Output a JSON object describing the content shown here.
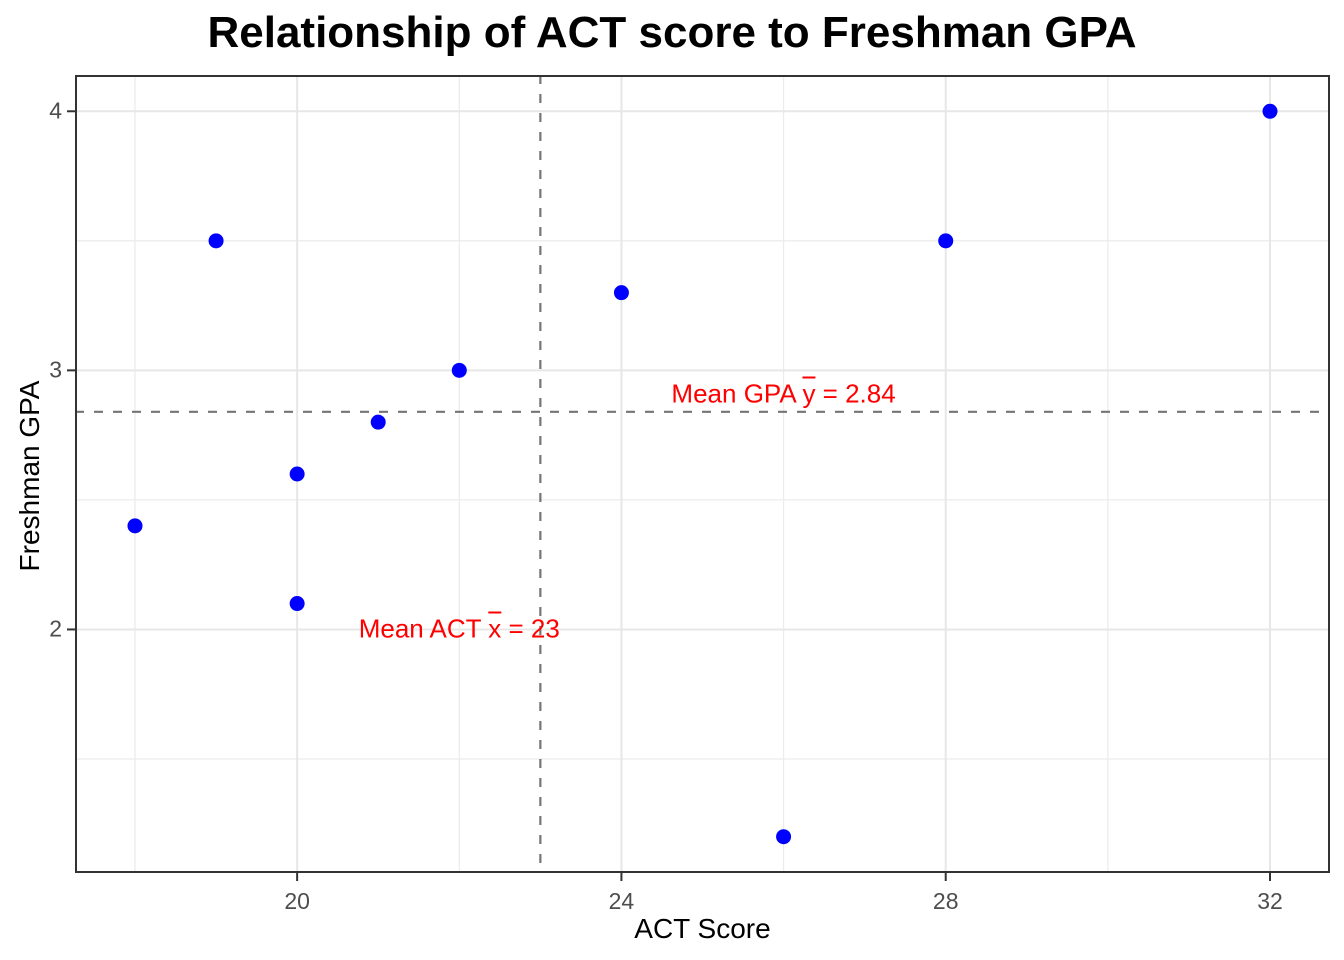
{
  "chart_data": {
    "type": "scatter",
    "title": "Relationship of ACT score to Freshman GPA",
    "xlabel": "ACT Score",
    "ylabel": "Freshman GPA",
    "points": [
      {
        "x": 18,
        "y": 2.4
      },
      {
        "x": 19,
        "y": 3.5
      },
      {
        "x": 20,
        "y": 2.6
      },
      {
        "x": 20,
        "y": 2.1
      },
      {
        "x": 21,
        "y": 2.8
      },
      {
        "x": 22,
        "y": 3.0
      },
      {
        "x": 24,
        "y": 3.3
      },
      {
        "x": 26,
        "y": 1.2
      },
      {
        "x": 28,
        "y": 3.5
      },
      {
        "x": 32,
        "y": 4.0
      }
    ],
    "xlim": [
      17.26,
      32.74
    ],
    "ylim": [
      1.06,
      4.14
    ],
    "x_ticks": [
      {
        "value": 20,
        "label": "20"
      },
      {
        "value": 24,
        "label": "24"
      },
      {
        "value": 28,
        "label": "28"
      },
      {
        "value": 32,
        "label": "32"
      }
    ],
    "y_ticks": [
      {
        "value": 2,
        "label": "2"
      },
      {
        "value": 3,
        "label": "3"
      },
      {
        "value": 4,
        "label": "4"
      }
    ],
    "x_minor_gridlines": [
      18,
      22,
      26,
      30
    ],
    "y_minor_gridlines": [
      1.5,
      2.5,
      3.5
    ],
    "mean_lines": {
      "vertical_x": 23,
      "horizontal_y": 2.84
    },
    "annotations": {
      "mean_act": {
        "prefix": "Mean ACT ",
        "var": "x",
        "suffix": " = 23",
        "anchor_x": 22,
        "anchor_y": 2.0
      },
      "mean_gpa": {
        "prefix": "Mean GPA ",
        "var": "y",
        "suffix": " = 2.84",
        "anchor_x": 26,
        "anchor_y": 2.91
      }
    },
    "grid": true,
    "legend": "none"
  },
  "colors": {
    "point": "#0000ff",
    "annotation": "#ff0000",
    "mean_line": "#757575",
    "grid_major": "#e7e7e7",
    "grid_minor": "#ececec",
    "panel_border": "#333333",
    "tick_mark": "#333333",
    "tick_label": "#4d4d4d",
    "axis_title": "#000000",
    "background": "#ffffff"
  }
}
